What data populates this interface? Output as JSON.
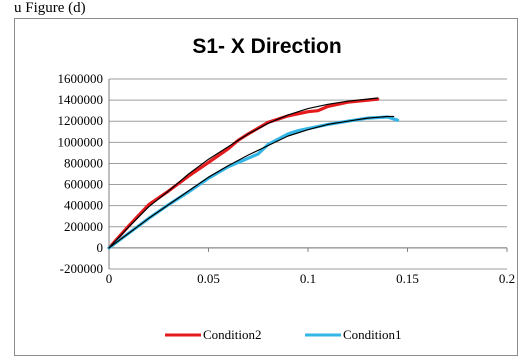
{
  "page": {
    "caption": "u Figure (d)"
  },
  "chart_data": {
    "type": "line",
    "title": "S1-  X Direction",
    "xlabel": "",
    "ylabel": "",
    "xlim": [
      0,
      0.2
    ],
    "ylim": [
      -200000,
      1600000
    ],
    "x_ticks": [
      0,
      0.05,
      0.1,
      0.15,
      0.2
    ],
    "x_tick_labels": [
      "0",
      "0.05",
      "0.1",
      "0.15",
      "0.2"
    ],
    "y_ticks": [
      1600000,
      1400000,
      1200000,
      1000000,
      800000,
      600000,
      400000,
      200000,
      0,
      -200000
    ],
    "y_tick_labels": [
      "1600000",
      "1400000",
      "1200000",
      "1000000",
      "800000",
      "600000",
      "400000",
      "200000",
      "0",
      "-200000"
    ],
    "grid": "horizontal",
    "legend_position": "bottom",
    "series": [
      {
        "name": "Condition2",
        "color": "#e41a1c",
        "x": [
          0,
          0.01,
          0.02,
          0.03,
          0.04,
          0.05,
          0.06,
          0.065,
          0.07,
          0.08,
          0.09,
          0.1,
          0.105,
          0.11,
          0.12,
          0.13,
          0.135
        ],
        "y": [
          0,
          210000,
          410000,
          540000,
          680000,
          810000,
          940000,
          1020000,
          1080000,
          1190000,
          1250000,
          1290000,
          1300000,
          1340000,
          1380000,
          1400000,
          1410000
        ]
      },
      {
        "name": "Condition1",
        "color": "#33b5e5",
        "x": [
          0,
          0.01,
          0.02,
          0.03,
          0.04,
          0.05,
          0.06,
          0.07,
          0.075,
          0.08,
          0.09,
          0.095,
          0.1,
          0.11,
          0.12,
          0.13,
          0.14,
          0.145
        ],
        "y": [
          0,
          140000,
          280000,
          410000,
          530000,
          660000,
          770000,
          850000,
          890000,
          980000,
          1080000,
          1110000,
          1130000,
          1170000,
          1200000,
          1230000,
          1240000,
          1210000
        ]
      },
      {
        "name": "",
        "color": "#000000",
        "x": [
          0,
          0.01,
          0.02,
          0.03,
          0.04,
          0.05,
          0.06,
          0.07,
          0.08,
          0.09,
          0.1,
          0.11,
          0.12,
          0.13,
          0.135
        ],
        "y": [
          0,
          200000,
          390000,
          540000,
          700000,
          840000,
          960000,
          1080000,
          1180000,
          1260000,
          1320000,
          1360000,
          1390000,
          1410000,
          1420000
        ]
      },
      {
        "name": "",
        "color": "#000000",
        "x": [
          0,
          0.01,
          0.02,
          0.03,
          0.04,
          0.05,
          0.06,
          0.07,
          0.08,
          0.09,
          0.1,
          0.11,
          0.12,
          0.13,
          0.14,
          0.143
        ],
        "y": [
          0,
          140000,
          280000,
          410000,
          540000,
          670000,
          780000,
          880000,
          970000,
          1060000,
          1120000,
          1170000,
          1200000,
          1230000,
          1245000,
          1245000
        ]
      }
    ]
  }
}
